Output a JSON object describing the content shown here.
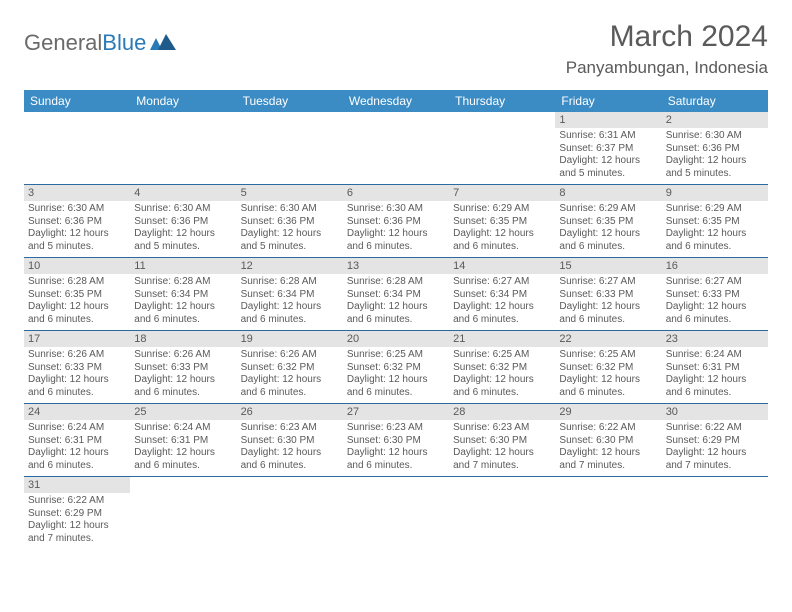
{
  "logo": {
    "text1": "General",
    "text2": "Blue"
  },
  "title": "March 2024",
  "location": "Panyambungan, Indonesia",
  "colors": {
    "header_bg": "#3b8bc4",
    "header_text": "#ffffff",
    "daynum_bg": "#e4e4e4",
    "border": "#2a6aa0",
    "text": "#5a5a5a",
    "logo_gray": "#6a6a6a",
    "logo_blue": "#2a7ab8"
  },
  "day_headers": [
    "Sunday",
    "Monday",
    "Tuesday",
    "Wednesday",
    "Thursday",
    "Friday",
    "Saturday"
  ],
  "weeks": [
    [
      null,
      null,
      null,
      null,
      null,
      {
        "n": "1",
        "sr": "6:31 AM",
        "ss": "6:37 PM",
        "dl": "12 hours and 5 minutes."
      },
      {
        "n": "2",
        "sr": "6:30 AM",
        "ss": "6:36 PM",
        "dl": "12 hours and 5 minutes."
      }
    ],
    [
      {
        "n": "3",
        "sr": "6:30 AM",
        "ss": "6:36 PM",
        "dl": "12 hours and 5 minutes."
      },
      {
        "n": "4",
        "sr": "6:30 AM",
        "ss": "6:36 PM",
        "dl": "12 hours and 5 minutes."
      },
      {
        "n": "5",
        "sr": "6:30 AM",
        "ss": "6:36 PM",
        "dl": "12 hours and 5 minutes."
      },
      {
        "n": "6",
        "sr": "6:30 AM",
        "ss": "6:36 PM",
        "dl": "12 hours and 6 minutes."
      },
      {
        "n": "7",
        "sr": "6:29 AM",
        "ss": "6:35 PM",
        "dl": "12 hours and 6 minutes."
      },
      {
        "n": "8",
        "sr": "6:29 AM",
        "ss": "6:35 PM",
        "dl": "12 hours and 6 minutes."
      },
      {
        "n": "9",
        "sr": "6:29 AM",
        "ss": "6:35 PM",
        "dl": "12 hours and 6 minutes."
      }
    ],
    [
      {
        "n": "10",
        "sr": "6:28 AM",
        "ss": "6:35 PM",
        "dl": "12 hours and 6 minutes."
      },
      {
        "n": "11",
        "sr": "6:28 AM",
        "ss": "6:34 PM",
        "dl": "12 hours and 6 minutes."
      },
      {
        "n": "12",
        "sr": "6:28 AM",
        "ss": "6:34 PM",
        "dl": "12 hours and 6 minutes."
      },
      {
        "n": "13",
        "sr": "6:28 AM",
        "ss": "6:34 PM",
        "dl": "12 hours and 6 minutes."
      },
      {
        "n": "14",
        "sr": "6:27 AM",
        "ss": "6:34 PM",
        "dl": "12 hours and 6 minutes."
      },
      {
        "n": "15",
        "sr": "6:27 AM",
        "ss": "6:33 PM",
        "dl": "12 hours and 6 minutes."
      },
      {
        "n": "16",
        "sr": "6:27 AM",
        "ss": "6:33 PM",
        "dl": "12 hours and 6 minutes."
      }
    ],
    [
      {
        "n": "17",
        "sr": "6:26 AM",
        "ss": "6:33 PM",
        "dl": "12 hours and 6 minutes."
      },
      {
        "n": "18",
        "sr": "6:26 AM",
        "ss": "6:33 PM",
        "dl": "12 hours and 6 minutes."
      },
      {
        "n": "19",
        "sr": "6:26 AM",
        "ss": "6:32 PM",
        "dl": "12 hours and 6 minutes."
      },
      {
        "n": "20",
        "sr": "6:25 AM",
        "ss": "6:32 PM",
        "dl": "12 hours and 6 minutes."
      },
      {
        "n": "21",
        "sr": "6:25 AM",
        "ss": "6:32 PM",
        "dl": "12 hours and 6 minutes."
      },
      {
        "n": "22",
        "sr": "6:25 AM",
        "ss": "6:32 PM",
        "dl": "12 hours and 6 minutes."
      },
      {
        "n": "23",
        "sr": "6:24 AM",
        "ss": "6:31 PM",
        "dl": "12 hours and 6 minutes."
      }
    ],
    [
      {
        "n": "24",
        "sr": "6:24 AM",
        "ss": "6:31 PM",
        "dl": "12 hours and 6 minutes."
      },
      {
        "n": "25",
        "sr": "6:24 AM",
        "ss": "6:31 PM",
        "dl": "12 hours and 6 minutes."
      },
      {
        "n": "26",
        "sr": "6:23 AM",
        "ss": "6:30 PM",
        "dl": "12 hours and 6 minutes."
      },
      {
        "n": "27",
        "sr": "6:23 AM",
        "ss": "6:30 PM",
        "dl": "12 hours and 6 minutes."
      },
      {
        "n": "28",
        "sr": "6:23 AM",
        "ss": "6:30 PM",
        "dl": "12 hours and 7 minutes."
      },
      {
        "n": "29",
        "sr": "6:22 AM",
        "ss": "6:30 PM",
        "dl": "12 hours and 7 minutes."
      },
      {
        "n": "30",
        "sr": "6:22 AM",
        "ss": "6:29 PM",
        "dl": "12 hours and 7 minutes."
      }
    ],
    [
      {
        "n": "31",
        "sr": "6:22 AM",
        "ss": "6:29 PM",
        "dl": "12 hours and 7 minutes."
      },
      null,
      null,
      null,
      null,
      null,
      null
    ]
  ],
  "labels": {
    "sunrise": "Sunrise:",
    "sunset": "Sunset:",
    "daylight": "Daylight:"
  }
}
